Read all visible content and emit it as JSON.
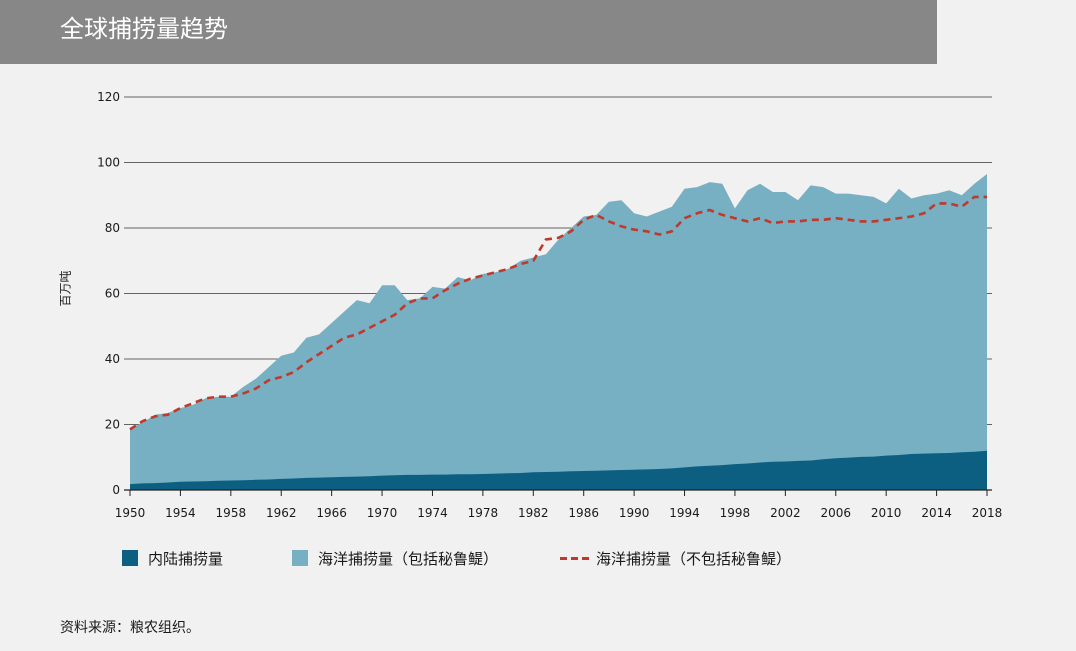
{
  "header": {
    "title": "全球捕捞量趋势"
  },
  "footer": {
    "source": "资料来源：粮农组织。"
  },
  "colors": {
    "inland": "#0d5f82",
    "marine": "#77afc3",
    "dashed": "#c0392b"
  },
  "chart_data": {
    "type": "area",
    "ylabel": "百万吨",
    "xlabel": "",
    "ylim": [
      0,
      120
    ],
    "yticks": [
      0,
      20,
      40,
      60,
      80,
      100,
      120
    ],
    "xticks": [
      1950,
      1954,
      1958,
      1962,
      1966,
      1970,
      1974,
      1978,
      1982,
      1986,
      1990,
      1994,
      1998,
      2002,
      2006,
      2010,
      2014,
      2018
    ],
    "grid": "horizontal",
    "legend_position": "bottom",
    "x": [
      1950,
      1951,
      1952,
      1953,
      1954,
      1955,
      1956,
      1957,
      1958,
      1959,
      1960,
      1961,
      1962,
      1963,
      1964,
      1965,
      1966,
      1967,
      1968,
      1969,
      1970,
      1971,
      1972,
      1973,
      1974,
      1975,
      1976,
      1977,
      1978,
      1979,
      1980,
      1981,
      1982,
      1983,
      1984,
      1985,
      1986,
      1987,
      1988,
      1989,
      1990,
      1991,
      1992,
      1993,
      1994,
      1995,
      1996,
      1997,
      1998,
      1999,
      2000,
      2001,
      2002,
      2003,
      2004,
      2005,
      2006,
      2007,
      2008,
      2009,
      2010,
      2011,
      2012,
      2013,
      2014,
      2015,
      2016,
      2017,
      2018
    ],
    "series": [
      {
        "name": "内陆捕捞量",
        "type": "area",
        "values": [
          1.8,
          2.0,
          2.1,
          2.3,
          2.5,
          2.6,
          2.7,
          2.8,
          2.9,
          3.0,
          3.1,
          3.2,
          3.4,
          3.5,
          3.7,
          3.8,
          3.9,
          4.0,
          4.1,
          4.2,
          4.4,
          4.5,
          4.6,
          4.6,
          4.7,
          4.7,
          4.8,
          4.8,
          4.9,
          5.0,
          5.1,
          5.2,
          5.4,
          5.5,
          5.6,
          5.7,
          5.8,
          5.9,
          6.0,
          6.1,
          6.2,
          6.3,
          6.4,
          6.6,
          6.9,
          7.2,
          7.4,
          7.6,
          7.9,
          8.1,
          8.4,
          8.6,
          8.7,
          8.9,
          9.0,
          9.4,
          9.7,
          9.9,
          10.1,
          10.2,
          10.5,
          10.7,
          11.0,
          11.1,
          11.2,
          11.3,
          11.5,
          11.7,
          12.0
        ]
      },
      {
        "name": "海洋捕捞量（包括秘鲁鳀）",
        "type": "area",
        "values": [
          18.7,
          20.6,
          23.0,
          23.5,
          25.0,
          26.0,
          28.0,
          28.5,
          28.5,
          31.5,
          34.0,
          37.5,
          41.0,
          42.0,
          46.5,
          47.5,
          51.0,
          54.5,
          58.0,
          57.0,
          62.5,
          62.5,
          58.0,
          58.5,
          62.0,
          61.5,
          65.0,
          64.0,
          66.0,
          66.5,
          67.5,
          70.0,
          71.0,
          72.0,
          76.5,
          80.0,
          83.5,
          84.0,
          88.0,
          88.5,
          84.5,
          83.5,
          85.0,
          86.5,
          92.0,
          92.5,
          94.0,
          93.5,
          86.0,
          91.5,
          93.5,
          91.0,
          91.0,
          88.5,
          93.0,
          92.5,
          90.5,
          90.5,
          90.0,
          89.5,
          87.5,
          92.0,
          89.0,
          90.0,
          90.5,
          91.5,
          90.0,
          93.5,
          96.5
        ]
      },
      {
        "name": "海洋捕捞量（不包括秘鲁鳀）",
        "type": "line",
        "values": [
          18.5,
          21.0,
          22.5,
          23.0,
          25.0,
          26.5,
          28.0,
          28.5,
          28.5,
          29.5,
          31.0,
          33.5,
          34.5,
          36.0,
          39.0,
          41.5,
          44.0,
          46.5,
          47.5,
          49.5,
          51.5,
          53.5,
          57.0,
          58.5,
          58.5,
          61.0,
          63.0,
          64.5,
          65.5,
          66.5,
          67.5,
          69.0,
          70.0,
          76.5,
          77.0,
          79.0,
          82.5,
          84.0,
          82.0,
          80.5,
          79.5,
          79.0,
          78.0,
          79.0,
          83.0,
          84.5,
          85.5,
          84.0,
          83.0,
          82.0,
          83.0,
          81.5,
          82.0,
          82.0,
          82.5,
          82.5,
          83.0,
          82.5,
          82.0,
          82.0,
          82.5,
          83.0,
          83.5,
          84.5,
          87.5,
          87.5,
          86.5,
          89.5,
          89.5
        ]
      }
    ]
  }
}
